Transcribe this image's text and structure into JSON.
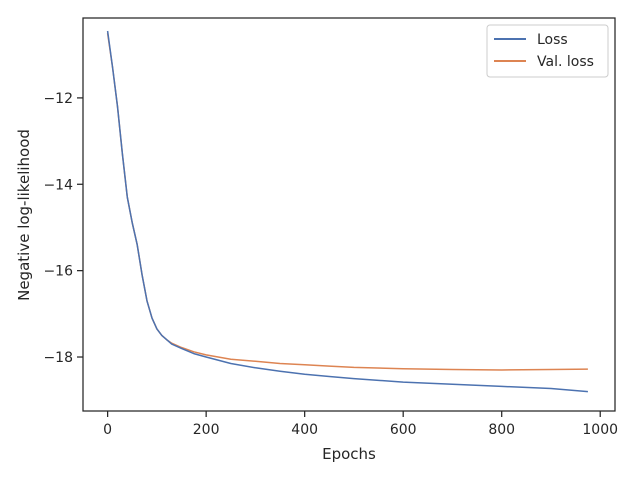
{
  "chart_data": {
    "type": "line",
    "title": "",
    "xlabel": "Epochs",
    "ylabel": "Negative log-likelihood",
    "xlim": [
      -50,
      1030
    ],
    "ylim": [
      -19.25,
      -10.15
    ],
    "xticks": [
      0,
      200,
      400,
      600,
      800,
      1000
    ],
    "yticks": [
      -12,
      -14,
      -16,
      -18
    ],
    "grid": false,
    "legend_position": "top-right",
    "colors": {
      "loss": "#4c72b0",
      "val_loss": "#dd8452"
    },
    "series": [
      {
        "name": "Loss",
        "x": [
          0,
          10,
          20,
          30,
          40,
          50,
          60,
          70,
          80,
          90,
          100,
          110,
          120,
          130,
          150,
          175,
          200,
          250,
          300,
          350,
          400,
          450,
          500,
          600,
          700,
          800,
          900,
          975
        ],
        "y": [
          -10.45,
          -11.3,
          -12.2,
          -13.3,
          -14.3,
          -14.9,
          -15.4,
          -16.1,
          -16.7,
          -17.1,
          -17.35,
          -17.5,
          -17.6,
          -17.7,
          -17.8,
          -17.92,
          -18.0,
          -18.15,
          -18.25,
          -18.33,
          -18.4,
          -18.45,
          -18.5,
          -18.58,
          -18.63,
          -18.68,
          -18.73,
          -18.8
        ]
      },
      {
        "name": "Val. loss",
        "x": [
          0,
          10,
          20,
          30,
          40,
          50,
          60,
          70,
          80,
          90,
          100,
          110,
          120,
          130,
          150,
          175,
          200,
          250,
          300,
          350,
          400,
          450,
          500,
          600,
          700,
          800,
          900,
          975
        ],
        "y": [
          -10.5,
          -11.3,
          -12.2,
          -13.3,
          -14.3,
          -14.9,
          -15.4,
          -16.1,
          -16.7,
          -17.1,
          -17.35,
          -17.5,
          -17.6,
          -17.68,
          -17.78,
          -17.88,
          -17.95,
          -18.05,
          -18.1,
          -18.15,
          -18.18,
          -18.21,
          -18.24,
          -18.27,
          -18.29,
          -18.3,
          -18.29,
          -18.28
        ]
      }
    ]
  }
}
